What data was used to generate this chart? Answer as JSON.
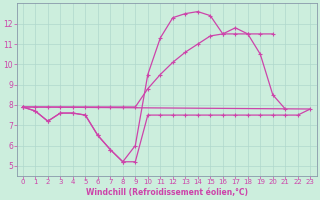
{
  "background_color": "#cceedd",
  "grid_color": "#aaddcc",
  "line_color": "#cc44aa",
  "xlabel": "Windchill (Refroidissement éolien,°C)",
  "xlim": [
    -0.5,
    23.5
  ],
  "ylim": [
    4.5,
    13.0
  ],
  "yticks": [
    5,
    6,
    7,
    8,
    9,
    10,
    11,
    12
  ],
  "xticks": [
    0,
    1,
    2,
    3,
    4,
    5,
    6,
    7,
    8,
    9,
    10,
    11,
    12,
    13,
    14,
    15,
    16,
    17,
    18,
    19,
    20,
    21,
    22,
    23
  ],
  "line1_x": [
    0,
    1,
    2,
    3,
    4,
    5,
    6,
    7,
    8,
    9,
    10,
    11,
    12,
    13,
    14,
    15,
    16,
    17,
    18,
    19,
    20,
    21,
    22,
    23
  ],
  "line1_y": [
    7.9,
    7.7,
    7.2,
    7.6,
    7.6,
    7.5,
    6.5,
    5.8,
    5.2,
    5.2,
    7.5,
    7.5,
    7.5,
    7.5,
    7.5,
    7.5,
    7.5,
    7.5,
    7.5,
    7.5,
    7.5,
    7.5,
    7.5,
    7.8
  ],
  "line2_x": [
    0,
    1,
    2,
    3,
    4,
    5,
    6,
    7,
    8,
    9,
    10,
    11,
    12,
    13,
    14,
    15,
    16,
    17,
    18,
    19,
    20,
    21,
    22,
    23
  ],
  "line2_y": [
    7.9,
    7.7,
    7.2,
    7.6,
    7.6,
    7.5,
    6.5,
    5.8,
    5.2,
    6.0,
    9.5,
    11.3,
    12.3,
    12.5,
    12.6,
    12.4,
    11.5,
    11.8,
    11.5,
    10.5,
    8.5,
    7.8,
    null,
    null
  ],
  "line3_x": [
    0,
    1,
    2,
    3,
    4,
    5,
    6,
    7,
    8,
    9,
    10,
    11,
    12,
    13,
    14,
    15,
    16,
    17,
    18,
    19,
    20,
    21,
    22,
    23
  ],
  "line3_y": [
    7.9,
    7.9,
    7.9,
    7.9,
    7.9,
    7.9,
    7.9,
    7.9,
    7.9,
    7.9,
    8.8,
    9.5,
    10.1,
    10.6,
    11.0,
    11.4,
    11.5,
    11.5,
    11.5,
    11.5,
    11.5,
    null,
    null,
    null
  ],
  "line4_x": [
    0,
    23
  ],
  "line4_y": [
    7.9,
    7.8
  ],
  "title_color": "#cc44aa",
  "tick_fontsize": 5,
  "xlabel_fontsize": 5.5
}
